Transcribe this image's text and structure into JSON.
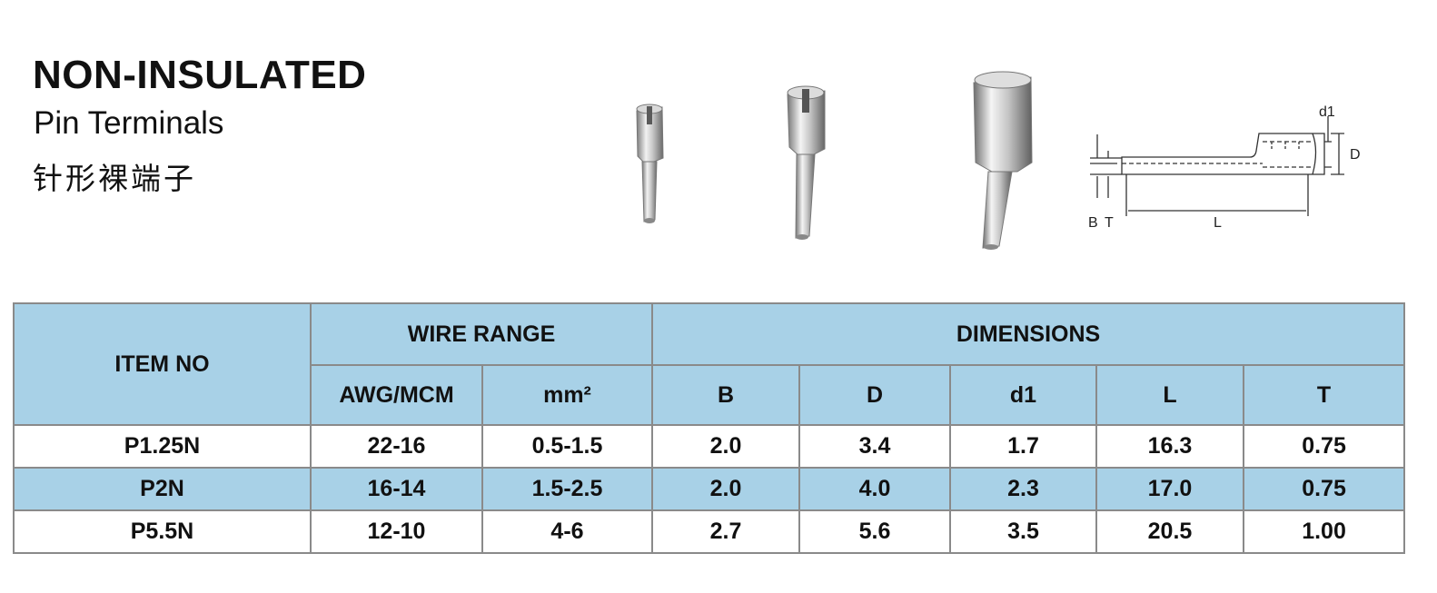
{
  "header": {
    "title": "NON-INSULATED",
    "subtitle": "Pin Terminals",
    "title_cn": "针形裸端子"
  },
  "diagram": {
    "labels": {
      "d1": "d1",
      "D": "D",
      "B": "B",
      "T": "T",
      "L": "L"
    }
  },
  "table": {
    "item_header": "ITEM NO",
    "wire_range_header": "WIRE RANGE",
    "dimensions_header": "DIMENSIONS",
    "wire_subheaders": [
      "AWG/MCM",
      "mm²"
    ],
    "dim_subheaders": [
      "B",
      "D",
      "d1",
      "L",
      "T"
    ],
    "rows": [
      {
        "item": "P1.25N",
        "awg": "22-16",
        "mm2": "0.5-1.5",
        "B": "2.0",
        "D": "3.4",
        "d1": "1.7",
        "L": "16.3",
        "T": "0.75"
      },
      {
        "item": "P2N",
        "awg": "16-14",
        "mm2": "1.5-2.5",
        "B": "2.0",
        "D": "4.0",
        "d1": "2.3",
        "L": "17.0",
        "T": "0.75"
      },
      {
        "item": "P5.5N",
        "awg": "12-10",
        "mm2": "4-6",
        "B": "2.7",
        "D": "5.6",
        "d1": "3.5",
        "L": "20.5",
        "T": "1.00"
      }
    ]
  },
  "colors": {
    "header_blue": "#a8d1e7",
    "border": "#8a8a8a"
  }
}
